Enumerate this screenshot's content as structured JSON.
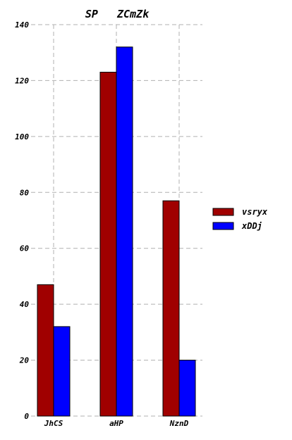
{
  "chart_data": {
    "type": "bar",
    "title": "SP   ZCmZk",
    "xlabel": "",
    "ylabel": "",
    "categories": [
      "JhCS",
      "aHP",
      "NznD"
    ],
    "series": [
      {
        "name": "vsryx",
        "values": [
          47,
          123,
          77
        ],
        "color": "#a00000"
      },
      {
        "name": "xDDj",
        "values": [
          32,
          132,
          20
        ],
        "color": "#0000ff"
      }
    ],
    "ylim": [
      0,
      140
    ],
    "yticks": [
      0,
      20,
      40,
      60,
      80,
      100,
      120,
      140
    ],
    "grid": true,
    "legend_position": "right"
  }
}
